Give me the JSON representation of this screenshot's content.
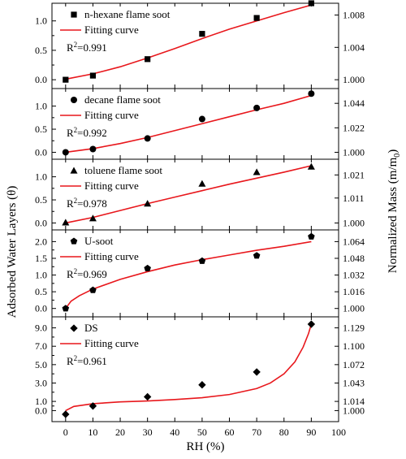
{
  "chart_data": {
    "type": "scatter",
    "xlabel": "RH (%)",
    "ylabel_left": "Adsorbed Water Layers (θ)",
    "ylabel_right_main": "Normalized Mass (m/m",
    "ylabel_right_sub": "0",
    "ylabel_right_close": ")",
    "xlim": [
      -5,
      100
    ],
    "xticks": [
      0,
      10,
      20,
      30,
      40,
      50,
      60,
      70,
      80,
      90,
      100
    ],
    "fit_color": "#e8171c",
    "panels": [
      {
        "name": "n-hexane flame soot",
        "marker": "square",
        "fit_label": "Fitting curve",
        "r2": "0.991",
        "x": [
          0,
          10,
          30,
          50,
          70,
          90
        ],
        "y": [
          0.0,
          0.07,
          0.35,
          0.78,
          1.05,
          1.3
        ],
        "fit": [
          [
            0,
            0.01
          ],
          [
            10,
            0.1
          ],
          [
            20,
            0.22
          ],
          [
            30,
            0.37
          ],
          [
            40,
            0.53
          ],
          [
            50,
            0.7
          ],
          [
            60,
            0.86
          ],
          [
            70,
            1.0
          ],
          [
            80,
            1.14
          ],
          [
            90,
            1.27
          ]
        ],
        "ylim": [
          -0.15,
          1.3
        ],
        "yticks_left": [
          "0.0",
          "0.5",
          "1.0"
        ],
        "yticks_left_vals": [
          0.0,
          0.5,
          1.0
        ],
        "yticks_right": [
          "1.000",
          "1.004",
          "1.008"
        ],
        "yticks_right_vals": [
          0.0,
          0.55,
          1.1
        ]
      },
      {
        "name": "decane flame soot",
        "marker": "circle",
        "fit_label": "Fitting curve",
        "r2": "0.992",
        "x": [
          0,
          10,
          30,
          50,
          70,
          90
        ],
        "y": [
          0.0,
          0.07,
          0.3,
          0.72,
          0.96,
          1.27
        ],
        "fit": [
          [
            0,
            0.0
          ],
          [
            10,
            0.08
          ],
          [
            20,
            0.19
          ],
          [
            30,
            0.32
          ],
          [
            40,
            0.47
          ],
          [
            50,
            0.62
          ],
          [
            60,
            0.77
          ],
          [
            70,
            0.92
          ],
          [
            80,
            1.06
          ],
          [
            90,
            1.23
          ]
        ],
        "ylim": [
          -0.15,
          1.38
        ],
        "yticks_left": [
          "0.0",
          "0.5",
          "1.0"
        ],
        "yticks_left_vals": [
          0.0,
          0.5,
          1.0
        ],
        "yticks_right": [
          "1.000",
          "1.022",
          "1.044"
        ],
        "yticks_right_vals": [
          0.0,
          0.53,
          1.06
        ]
      },
      {
        "name": "toluene flame soot",
        "marker": "triangle",
        "fit_label": "Fitting curve",
        "r2": "0.978",
        "x": [
          0,
          10,
          30,
          50,
          70,
          90
        ],
        "y": [
          0.01,
          0.1,
          0.42,
          0.85,
          1.1,
          1.22
        ],
        "fit": [
          [
            0,
            0.0
          ],
          [
            10,
            0.12
          ],
          [
            20,
            0.27
          ],
          [
            30,
            0.42
          ],
          [
            40,
            0.56
          ],
          [
            50,
            0.7
          ],
          [
            60,
            0.84
          ],
          [
            70,
            0.97
          ],
          [
            80,
            1.1
          ],
          [
            90,
            1.24
          ]
        ],
        "ylim": [
          -0.15,
          1.38
        ],
        "yticks_left": [
          "0.0",
          "0.5",
          "1.0"
        ],
        "yticks_left_vals": [
          0.0,
          0.5,
          1.0
        ],
        "yticks_right": [
          "1.000",
          "1.011",
          "1.021"
        ],
        "yticks_right_vals": [
          0.0,
          0.54,
          1.04
        ]
      },
      {
        "name": "U-soot",
        "marker": "pentagon",
        "fit_label": "Fitting curve",
        "r2": "0.969",
        "x": [
          0,
          10,
          30,
          50,
          70,
          90
        ],
        "y": [
          0.0,
          0.55,
          1.2,
          1.42,
          1.58,
          2.15
        ],
        "fit": [
          [
            0,
            0.0
          ],
          [
            2,
            0.22
          ],
          [
            5,
            0.38
          ],
          [
            10,
            0.58
          ],
          [
            20,
            0.87
          ],
          [
            30,
            1.1
          ],
          [
            40,
            1.3
          ],
          [
            50,
            1.46
          ],
          [
            60,
            1.6
          ],
          [
            70,
            1.74
          ],
          [
            80,
            1.86
          ],
          [
            90,
            2.0
          ]
        ],
        "ylim": [
          -0.25,
          2.35
        ],
        "yticks_left": [
          "0.0",
          "0.5",
          "1.0",
          "1.5",
          "2.0"
        ],
        "yticks_left_vals": [
          0.0,
          0.5,
          1.0,
          1.5,
          2.0
        ],
        "yticks_right": [
          "1.000",
          "1.016",
          "1.032",
          "1.048",
          "1.064"
        ],
        "yticks_right_vals": [
          0.0,
          0.5,
          1.0,
          1.5,
          2.0
        ]
      },
      {
        "name": "DS",
        "marker": "diamond",
        "fit_label": "Fitting curve",
        "r2": "0.961",
        "x": [
          0,
          10,
          30,
          50,
          70,
          90
        ],
        "y": [
          -0.4,
          0.5,
          1.5,
          2.8,
          4.2,
          9.4
        ],
        "fit": [
          [
            0,
            0.0
          ],
          [
            3,
            0.45
          ],
          [
            10,
            0.75
          ],
          [
            20,
            0.95
          ],
          [
            30,
            1.05
          ],
          [
            40,
            1.2
          ],
          [
            50,
            1.4
          ],
          [
            60,
            1.75
          ],
          [
            70,
            2.4
          ],
          [
            75,
            3.0
          ],
          [
            80,
            4.0
          ],
          [
            84,
            5.3
          ],
          [
            87,
            6.9
          ],
          [
            89,
            8.4
          ],
          [
            90,
            9.4
          ]
        ],
        "ylim": [
          -1.2,
          10.2
        ],
        "yticks_left": [
          "0.0",
          "1.0",
          "3.0",
          "5.0",
          "7.0",
          "9.0"
        ],
        "yticks_left_vals": [
          0.0,
          1.0,
          3.0,
          5.0,
          7.0,
          9.0
        ],
        "yticks_right": [
          "1.000",
          "1.014",
          "1.043",
          "1.072",
          "1.100",
          "1.129"
        ],
        "yticks_right_vals": [
          0.0,
          1.0,
          3.0,
          5.0,
          7.0,
          9.0
        ]
      }
    ]
  }
}
